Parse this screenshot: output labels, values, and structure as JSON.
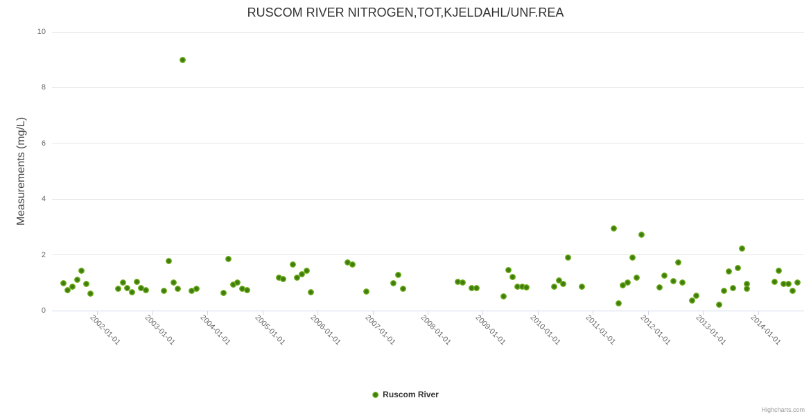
{
  "chart_data": {
    "type": "scatter",
    "title": "RUSCOM RIVER NITROGEN,TOT,KJELDAHL/UNF.REA",
    "xlabel": "",
    "ylabel": "Measurements (mg/L)",
    "grid": true,
    "legend_position": "bottom-center",
    "x_axis": {
      "min": 2001.17,
      "max": 2014.83,
      "tick_years": [
        2002,
        2003,
        2004,
        2005,
        2006,
        2007,
        2008,
        2009,
        2010,
        2011,
        2012,
        2013,
        2014
      ],
      "tick_labels": [
        "2002-01-01",
        "2003-01-01",
        "2004-01-01",
        "2005-01-01",
        "2006-01-01",
        "2007-01-01",
        "2008-01-01",
        "2009-01-01",
        "2010-01-01",
        "2011-01-01",
        "2012-01-01",
        "2013-01-01",
        "2014-01-01"
      ]
    },
    "y_axis": {
      "min": 0,
      "max": 10,
      "ticks": [
        0,
        2,
        4,
        6,
        8,
        10
      ]
    },
    "series": [
      {
        "name": "Ruscom River",
        "points": [
          [
            "2001-05",
            0.98
          ],
          [
            "2001-06",
            0.74
          ],
          [
            "2001-07",
            0.86
          ],
          [
            "2001-08",
            1.11
          ],
          [
            "2001-09",
            1.44
          ],
          [
            "2001-10",
            0.97
          ],
          [
            "2001-11",
            0.62
          ],
          [
            "2002-05",
            0.78
          ],
          [
            "2002-06",
            1.01
          ],
          [
            "2002-07",
            0.82
          ],
          [
            "2002-08",
            0.67
          ],
          [
            "2002-09",
            1.02
          ],
          [
            "2002-10",
            0.8
          ],
          [
            "2002-11",
            0.74
          ],
          [
            "2003-03",
            0.72
          ],
          [
            "2003-04",
            1.77
          ],
          [
            "2003-05",
            1.01
          ],
          [
            "2003-06",
            0.78
          ],
          [
            "2003-07",
            9.0
          ],
          [
            "2003-09",
            0.72
          ],
          [
            "2003-10",
            0.78
          ],
          [
            "2004-04",
            0.64
          ],
          [
            "2004-05",
            1.86
          ],
          [
            "2004-06",
            0.94
          ],
          [
            "2004-07",
            1.0
          ],
          [
            "2004-08",
            0.78
          ],
          [
            "2004-09",
            0.73
          ],
          [
            "2005-04",
            1.19
          ],
          [
            "2005-05",
            1.14
          ],
          [
            "2005-07",
            1.65
          ],
          [
            "2005-08",
            1.18
          ],
          [
            "2005-09",
            1.31
          ],
          [
            "2005-10",
            1.43
          ],
          [
            "2005-11",
            0.67
          ],
          [
            "2006-07",
            1.72
          ],
          [
            "2006-08",
            1.65
          ],
          [
            "2006-11",
            0.68
          ],
          [
            "2007-05",
            0.99
          ],
          [
            "2007-06",
            1.29
          ],
          [
            "2007-07",
            0.78
          ],
          [
            "2008-07",
            1.04
          ],
          [
            "2008-08",
            1.0
          ],
          [
            "2008-10",
            0.82
          ],
          [
            "2008-11",
            0.81
          ],
          [
            "2009-05",
            0.51
          ],
          [
            "2009-06",
            1.46
          ],
          [
            "2009-07",
            1.21
          ],
          [
            "2009-08",
            0.86
          ],
          [
            "2009-09",
            0.86
          ],
          [
            "2009-10",
            0.84
          ],
          [
            "2010-04",
            0.85
          ],
          [
            "2010-05",
            1.09
          ],
          [
            "2010-06",
            0.95
          ],
          [
            "2010-07",
            1.9
          ],
          [
            "2010-10",
            0.85
          ],
          [
            "2011-05",
            2.96
          ],
          [
            "2011-06",
            0.26
          ],
          [
            "2011-07",
            0.9
          ],
          [
            "2011-08",
            1.01
          ],
          [
            "2011-09",
            1.9
          ],
          [
            "2011-10",
            1.19
          ],
          [
            "2011-11",
            2.72
          ],
          [
            "2012-03",
            0.83
          ],
          [
            "2012-04",
            1.26
          ],
          [
            "2012-06",
            1.06
          ],
          [
            "2012-07",
            1.73
          ],
          [
            "2012-08",
            1.01
          ],
          [
            "2012-10",
            0.37
          ],
          [
            "2012-11",
            0.53
          ],
          [
            "2013-04",
            0.2
          ],
          [
            "2013-05",
            0.7
          ],
          [
            "2013-06",
            1.4
          ],
          [
            "2013-07",
            0.8
          ],
          [
            "2013-08",
            1.54
          ],
          [
            "2013-09",
            2.23
          ],
          [
            "2013-10",
            0.96
          ],
          [
            "2013-10",
            0.78
          ],
          [
            "2014-04",
            1.03
          ],
          [
            "2014-05",
            1.43
          ],
          [
            "2014-06",
            0.96
          ],
          [
            "2014-07",
            0.96
          ],
          [
            "2014-08",
            0.7
          ],
          [
            "2014-09",
            1.01
          ]
        ]
      }
    ]
  },
  "colors": {
    "marker_edge": "#85c226",
    "marker_core": "#3f7d0e",
    "gridline": "#e6e6e6",
    "axis_line": "#ccd6eb",
    "title_text": "#333333",
    "axis_label_text": "#666666",
    "legend_text": "#333333",
    "credits_text": "#999999"
  },
  "credits": {
    "label": "Highcharts.com"
  }
}
